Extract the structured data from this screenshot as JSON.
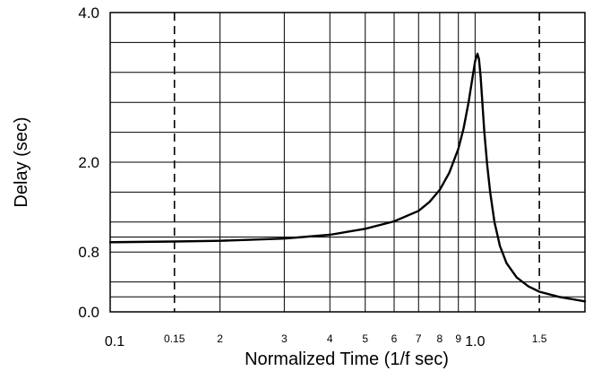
{
  "chart_data": {
    "type": "line",
    "title": "",
    "xlabel": "Normalized Time (1/f sec)",
    "ylabel": "Delay (sec)",
    "x_scale": "log",
    "xlim": [
      0.1,
      2.0
    ],
    "ylim": [
      0.0,
      4.0
    ],
    "grid": true,
    "x_tick_labels": [
      {
        "value": 0.1,
        "label": "0.1"
      },
      {
        "value": 0.15,
        "label": "0.15"
      },
      {
        "value": 0.2,
        "label": "2"
      },
      {
        "value": 0.3,
        "label": "3"
      },
      {
        "value": 0.4,
        "label": "4"
      },
      {
        "value": 0.5,
        "label": "5"
      },
      {
        "value": 0.6,
        "label": "6"
      },
      {
        "value": 0.7,
        "label": "7"
      },
      {
        "value": 0.8,
        "label": "8"
      },
      {
        "value": 0.9,
        "label": "9"
      },
      {
        "value": 1.0,
        "label": "1.0"
      },
      {
        "value": 1.5,
        "label": "1.5"
      }
    ],
    "y_tick_labels": [
      {
        "value": 0.0,
        "label": "0.0"
      },
      {
        "value": 0.8,
        "label": "0.8"
      },
      {
        "value": 2.0,
        "label": "2.0"
      },
      {
        "value": 4.0,
        "label": "4.0"
      }
    ],
    "x_vertical_gridlines": [
      0.2,
      0.3,
      0.4,
      0.5,
      0.6,
      0.7,
      0.8,
      0.9,
      1.0
    ],
    "dashed_verticals": [
      0.15,
      1.5
    ],
    "y_horizontal_gridlines": [
      0.2,
      0.4,
      0.8,
      1.0,
      1.2,
      1.6,
      2.0,
      2.4,
      2.8,
      3.2,
      3.6
    ],
    "series": [
      {
        "x": [
          0.1,
          0.15,
          0.2,
          0.3,
          0.4,
          0.5,
          0.6,
          0.7,
          0.75,
          0.8,
          0.85,
          0.9,
          0.93,
          0.96,
          0.98,
          1.0,
          1.015,
          1.025,
          1.035,
          1.045,
          1.06,
          1.08,
          1.1,
          1.13,
          1.17,
          1.22,
          1.3,
          1.4,
          1.5,
          1.7,
          2.0
        ],
        "y": [
          0.93,
          0.94,
          0.95,
          0.98,
          1.03,
          1.11,
          1.21,
          1.35,
          1.47,
          1.63,
          1.86,
          2.18,
          2.45,
          2.8,
          3.08,
          3.35,
          3.45,
          3.38,
          3.15,
          2.85,
          2.4,
          1.95,
          1.6,
          1.2,
          0.88,
          0.65,
          0.46,
          0.34,
          0.27,
          0.2,
          0.14
        ]
      }
    ]
  }
}
